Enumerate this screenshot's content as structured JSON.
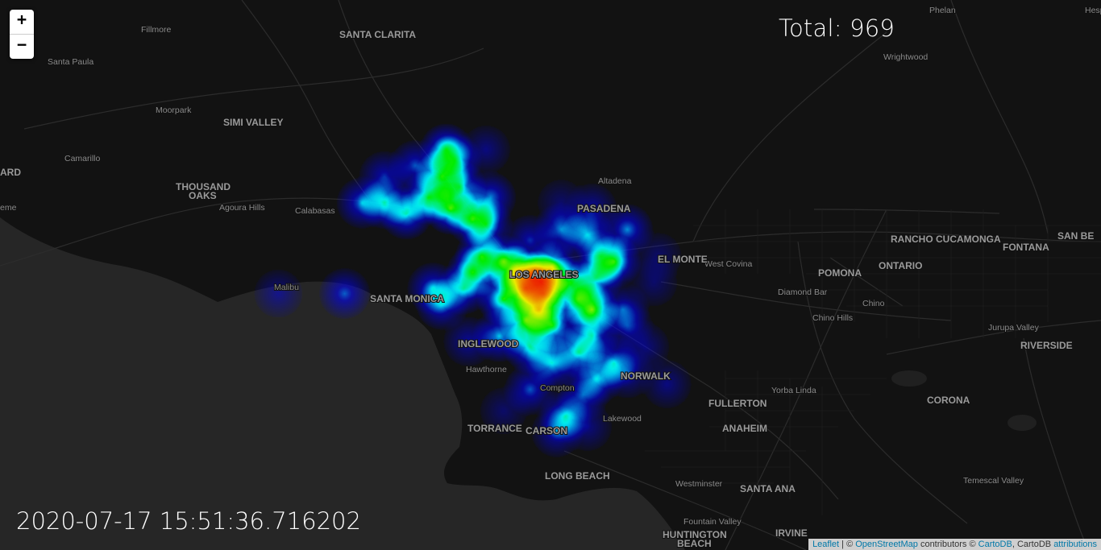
{
  "zoom": {
    "in_label": "+",
    "out_label": "−"
  },
  "total_label": "Total: 969",
  "timestamp": "2020-07-17 15:51:36.716202",
  "attribution": {
    "leaflet": "Leaflet",
    "sep1": " | © ",
    "osm": "OpenStreetMap",
    "contrib": " contributors © ",
    "cartodb": "CartoDB",
    "sep2": ", CartoDB ",
    "attr": "attributions"
  },
  "colors": {
    "land": "#121212",
    "ocean": "#262626",
    "roads": "#2e2e2e",
    "heat_gradient": [
      "#0000ff",
      "#00ffff",
      "#00ff00",
      "#ffff00",
      "#ff0000"
    ]
  },
  "places": [
    {
      "name": "Fillmore",
      "major": false
    },
    {
      "name": "SANTA CLARITA",
      "major": true
    },
    {
      "name": "Phelan",
      "major": false
    },
    {
      "name": "Santa Paula",
      "major": false
    },
    {
      "name": "Wrightwood",
      "major": false
    },
    {
      "name": "Moorpark",
      "major": false
    },
    {
      "name": "SIMI VALLEY",
      "major": true
    },
    {
      "name": "Camarillo",
      "major": false
    },
    {
      "name": "ARD",
      "major": true
    },
    {
      "name": "THOUSAND",
      "major": true
    },
    {
      "name": "OAKS",
      "major": true
    },
    {
      "name": "Agoura Hills",
      "major": false
    },
    {
      "name": "Calabasas",
      "major": false
    },
    {
      "name": "PASADENA",
      "major": true
    },
    {
      "name": "RANCHO CUCAMONGA",
      "major": true
    },
    {
      "name": "FONTANA",
      "major": true
    },
    {
      "name": "SAN BE",
      "major": true
    },
    {
      "name": "West Covina",
      "major": false
    },
    {
      "name": "ONTARIO",
      "major": true
    },
    {
      "name": "EL MONTE",
      "major": true
    },
    {
      "name": "POMONA",
      "major": true
    },
    {
      "name": "Malibu",
      "major": false
    },
    {
      "name": "LOS ANGELES",
      "major": true
    },
    {
      "name": "SANTA MONICA",
      "major": true
    },
    {
      "name": "Diamond Bar",
      "major": false
    },
    {
      "name": "Chino",
      "major": false
    },
    {
      "name": "Chino Hills",
      "major": false
    },
    {
      "name": "Jurupa Valley",
      "major": false
    },
    {
      "name": "RIVERSIDE",
      "major": true
    },
    {
      "name": "INGLEWOOD",
      "major": true
    },
    {
      "name": "NORWALK",
      "major": true
    },
    {
      "name": "Yorba Linda",
      "major": false
    },
    {
      "name": "FULLERTON",
      "major": true
    },
    {
      "name": "CORONA",
      "major": true
    },
    {
      "name": "Compton",
      "major": false
    },
    {
      "name": "TORRANCE",
      "major": true
    },
    {
      "name": "CARSON",
      "major": true
    },
    {
      "name": "Lakewood",
      "major": false
    },
    {
      "name": "ANAHEIM",
      "major": true
    },
    {
      "name": "LONG BEACH",
      "major": true
    },
    {
      "name": "Westminster",
      "major": false
    },
    {
      "name": "SANTA ANA",
      "major": true
    },
    {
      "name": "Temescal Valley",
      "major": false
    },
    {
      "name": "Fountain Valley",
      "major": false
    },
    {
      "name": "HUNTINGTON",
      "major": true
    },
    {
      "name": "BEACH",
      "major": true
    },
    {
      "name": "IRVINE",
      "major": true
    },
    {
      "name": "Hawthorne",
      "major": false
    },
    {
      "name": "Altadena",
      "major": false
    },
    {
      "name": "Hesp",
      "major": false
    },
    {
      "name": "eme",
      "major": false
    }
  ],
  "heat_points": [
    {
      "lat": 34.052,
      "lng": -118.244,
      "w": 1.0
    },
    {
      "lat": 34.06,
      "lng": -118.26,
      "w": 0.9
    },
    {
      "lat": 34.04,
      "lng": -118.28,
      "w": 0.85
    },
    {
      "lat": 34.03,
      "lng": -118.24,
      "w": 0.8
    },
    {
      "lat": 34.07,
      "lng": -118.3,
      "w": 0.75
    },
    {
      "lat": 34.08,
      "lng": -118.22,
      "w": 0.7
    },
    {
      "lat": 34.0,
      "lng": -118.25,
      "w": 0.75
    },
    {
      "lat": 33.98,
      "lng": -118.28,
      "w": 0.7
    },
    {
      "lat": 33.97,
      "lng": -118.22,
      "w": 0.65
    },
    {
      "lat": 34.02,
      "lng": -118.33,
      "w": 0.7
    },
    {
      "lat": 34.09,
      "lng": -118.33,
      "w": 0.65
    },
    {
      "lat": 34.1,
      "lng": -118.38,
      "w": 0.6
    },
    {
      "lat": 34.07,
      "lng": -118.4,
      "w": 0.55
    },
    {
      "lat": 34.04,
      "lng": -118.42,
      "w": 0.5
    },
    {
      "lat": 34.01,
      "lng": -118.47,
      "w": 0.45
    },
    {
      "lat": 34.05,
      "lng": -118.18,
      "w": 0.6
    },
    {
      "lat": 34.02,
      "lng": -118.16,
      "w": 0.55
    },
    {
      "lat": 34.0,
      "lng": -118.13,
      "w": 0.75
    },
    {
      "lat": 34.06,
      "lng": -118.12,
      "w": 0.55
    },
    {
      "lat": 34.09,
      "lng": -118.08,
      "w": 0.65
    },
    {
      "lat": 34.1,
      "lng": -118.11,
      "w": 0.4
    },
    {
      "lat": 34.14,
      "lng": -118.14,
      "w": 0.5
    },
    {
      "lat": 34.15,
      "lng": -118.2,
      "w": 0.45
    },
    {
      "lat": 34.15,
      "lng": -118.05,
      "w": 0.45
    },
    {
      "lat": 34.19,
      "lng": -118.13,
      "w": 0.3
    },
    {
      "lat": 33.95,
      "lng": -118.34,
      "w": 0.5
    },
    {
      "lat": 33.93,
      "lng": -118.27,
      "w": 0.6
    },
    {
      "lat": 33.9,
      "lng": -118.22,
      "w": 0.55
    },
    {
      "lat": 33.92,
      "lng": -118.16,
      "w": 0.55
    },
    {
      "lat": 33.95,
      "lng": -118.13,
      "w": 0.5
    },
    {
      "lat": 33.9,
      "lng": -118.08,
      "w": 0.45
    },
    {
      "lat": 33.87,
      "lng": -118.12,
      "w": 0.45
    },
    {
      "lat": 33.85,
      "lng": -118.27,
      "w": 0.4
    },
    {
      "lat": 33.84,
      "lng": -118.15,
      "w": 0.35
    },
    {
      "lat": 33.88,
      "lng": -118.05,
      "w": 0.3
    },
    {
      "lat": 33.86,
      "lng": -117.96,
      "w": 0.25
    },
    {
      "lat": 34.0,
      "lng": -118.06,
      "w": 0.35
    },
    {
      "lat": 33.97,
      "lng": -118.05,
      "w": 0.3
    },
    {
      "lat": 34.19,
      "lng": -118.45,
      "w": 0.7
    },
    {
      "lat": 34.21,
      "lng": -118.5,
      "w": 0.65
    },
    {
      "lat": 34.18,
      "lng": -118.55,
      "w": 0.55
    },
    {
      "lat": 34.2,
      "lng": -118.6,
      "w": 0.5
    },
    {
      "lat": 34.17,
      "lng": -118.4,
      "w": 0.6
    },
    {
      "lat": 34.16,
      "lng": -118.37,
      "w": 0.55
    },
    {
      "lat": 34.23,
      "lng": -118.43,
      "w": 0.55
    },
    {
      "lat": 34.25,
      "lng": -118.47,
      "w": 0.6
    },
    {
      "lat": 34.28,
      "lng": -118.44,
      "w": 0.45
    },
    {
      "lat": 34.3,
      "lng": -118.46,
      "w": 0.6
    },
    {
      "lat": 34.27,
      "lng": -118.53,
      "w": 0.4
    },
    {
      "lat": 34.2,
      "lng": -118.65,
      "w": 0.45
    },
    {
      "lat": 34.25,
      "lng": -118.6,
      "w": 0.35
    },
    {
      "lat": 34.21,
      "lng": -118.36,
      "w": 0.45
    },
    {
      "lat": 34.3,
      "lng": -118.37,
      "w": 0.25
    },
    {
      "lat": 34.2,
      "lng": -118.2,
      "w": 0.2
    },
    {
      "lat": 34.13,
      "lng": -118.27,
      "w": 0.35
    },
    {
      "lat": 34.04,
      "lng": -118.49,
      "w": 0.45
    },
    {
      "lat": 33.94,
      "lng": -118.41,
      "w": 0.3
    },
    {
      "lat": 34.03,
      "lng": -118.69,
      "w": 0.4
    },
    {
      "lat": 34.03,
      "lng": -118.84,
      "w": 0.25
    },
    {
      "lat": 33.8,
      "lng": -118.19,
      "w": 0.5
    },
    {
      "lat": 33.77,
      "lng": -118.21,
      "w": 0.35
    },
    {
      "lat": 33.78,
      "lng": -118.14,
      "w": 0.25
    },
    {
      "lat": 33.93,
      "lng": -118.01,
      "w": 0.25
    },
    {
      "lat": 33.81,
      "lng": -118.33,
      "w": 0.2
    },
    {
      "lat": 34.1,
      "lng": -117.98,
      "w": 0.2
    },
    {
      "lat": 34.05,
      "lng": -117.99,
      "w": 0.2
    }
  ]
}
